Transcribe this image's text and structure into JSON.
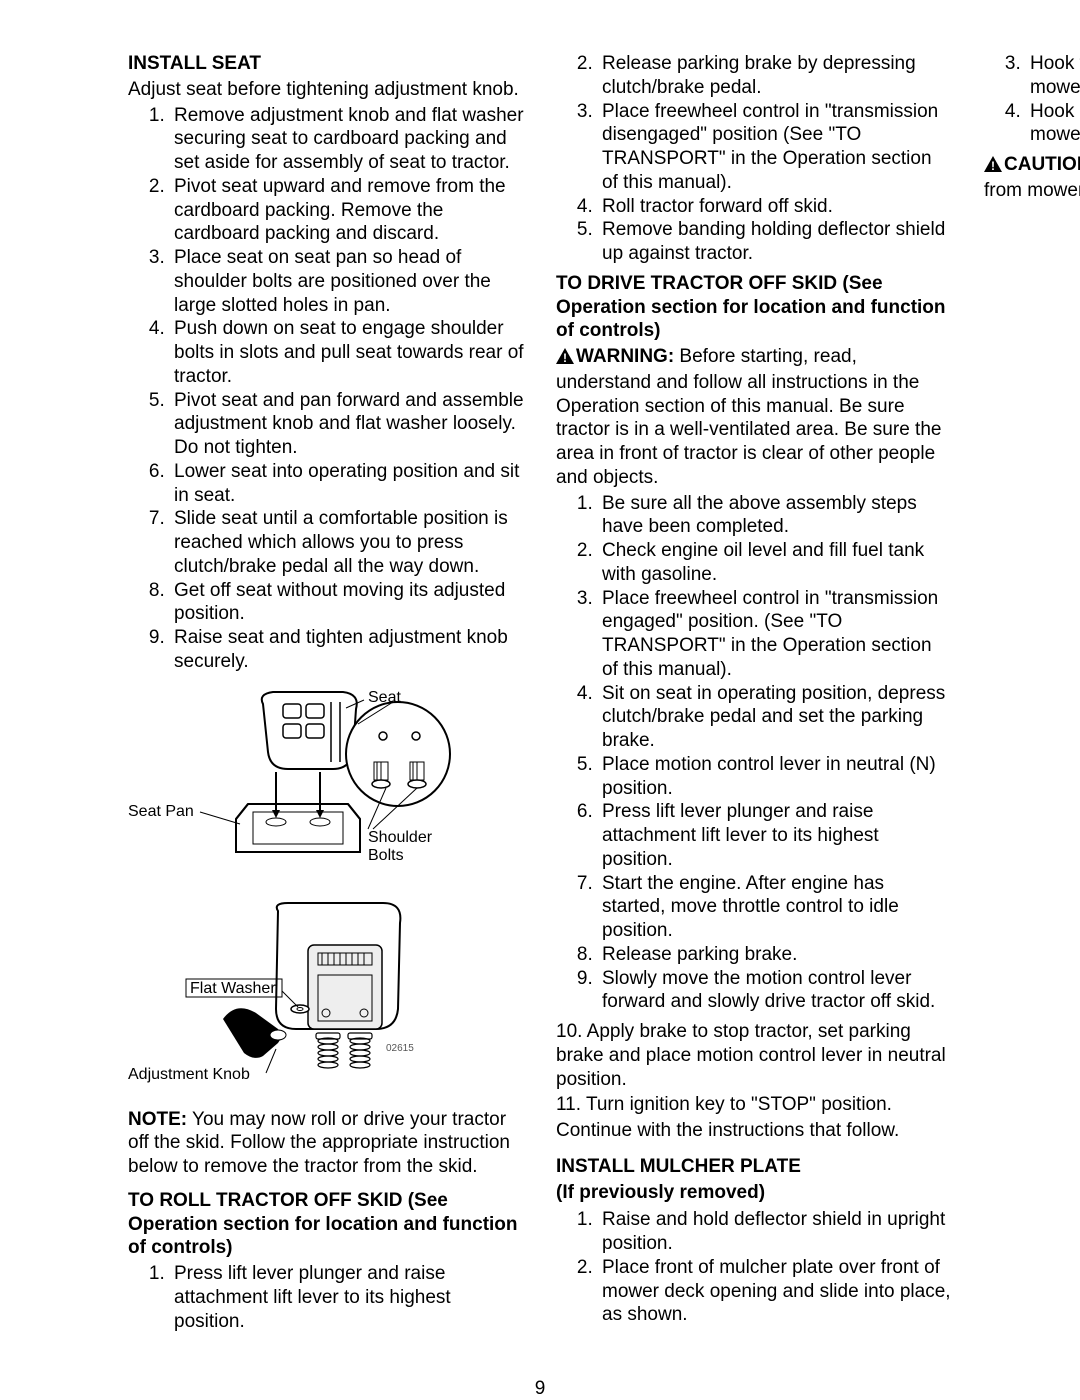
{
  "col1": {
    "install_seat_heading": "INSTALL SEAT",
    "install_seat_intro": "Adjust seat before tightening adjustment knob.",
    "install_seat_steps": [
      "Remove adjustment knob and flat washer securing seat to cardboard packing and set aside for assembly of seat to tractor.",
      "Pivot seat upward and remove from the cardboard packing. Remove the cardboard packing and discard.",
      "Place seat on seat pan so head of shoulder bolts are positioned over the large slotted holes in pan.",
      "Push down on seat to engage shoulder bolts in slots and pull seat towards rear of tractor.",
      "Pivot seat and pan forward and assemble adjustment knob and flat washer loosely. Do not tighten.",
      "Lower seat into operating position and sit in seat.",
      "Slide seat until a comfortable position is reached which allows you to press clutch/brake pedal all the way down.",
      "Get off seat without moving its adjusted position.",
      "Raise seat and tighten adjustment knob securely."
    ],
    "fig1_labels": {
      "seat": "Seat",
      "seat_pan": "Seat Pan",
      "shoulder_bolts": "Shoulder Bolts"
    },
    "fig2_labels": {
      "flat_washer": "Flat Washer",
      "adjustment_knob": "Adjustment Knob"
    },
    "note_prefix": "NOTE:",
    "note_text": " You may now roll or drive your tractor off the skid. Follow the appropriate instruction below to remove the tractor from the skid.",
    "roll_heading": "TO ROLL TRACTOR OFF SKID (See Operation section for location and function of controls)",
    "roll_steps_a": [
      "Press lift lever plunger and raise attachment lift lever to its highest position."
    ]
  },
  "col2": {
    "roll_steps_b": [
      "Release parking brake by depressing clutch/brake pedal.",
      "Place freewheel control in \"transmission disengaged\" position (See \"TO TRANSPORT\" in the Operation section of this manual).",
      "Roll tractor forward off skid.",
      "Remove banding holding deflector shield up against tractor."
    ],
    "drive_heading": "TO DRIVE TRACTOR OFF SKID (See Operation section for location and function of controls)",
    "warning_prefix": "WARNING:",
    "warning_text": " Before starting, read, understand and follow all instructions in the Operation section of this manual. Be sure tractor is in a well-ventilated area. Be sure the area in  front of tractor is clear of other people and objects.",
    "drive_steps": [
      "Be sure all the above assembly steps have been completed.",
      "Check engine oil level and fill fuel tank with gasoline.",
      "Place freewheel control in \"transmission engaged\" position. (See \"TO TRANSPORT\" in the Operation section of this manual).",
      "Sit on seat in operating position, depress clutch/brake pedal and set the parking brake.",
      "Place motion control lever in neutral (N) position.",
      "Press lift lever plunger and raise attachment lift lever to its highest position.",
      "Start the engine. After engine has started, move throttle control to idle position.",
      "Release parking brake.",
      "Slowly move the motion control lever forward and slowly drive tractor off skid."
    ],
    "drive_10": "10. Apply brake to stop tractor, set parking brake and place motion control lever in neutral position.",
    "drive_11": "11. Turn ignition key to \"STOP\" position.",
    "continue": "Continue with the instructions that follow.",
    "mulcher_heading": "INSTALL MULCHER PLATE",
    "mulcher_sub": "(If previously removed)",
    "mulcher_steps": [
      "Raise and hold deflector shield in upright position.",
      "Place front of mulcher plate over front of mower deck opening and slide into place, as shown.",
      "Hook front latch into hole on front of mower deck.",
      "Hook rear latch into hole on back of mower deck."
    ],
    "caution_prefix": "CAUTION",
    "caution_text": ":  Do not remove deflector shield from mower."
  },
  "page_number": "9",
  "style": {
    "font_size": 19,
    "heading_weight": "bold",
    "text_color": "#000000",
    "background": "#ffffff"
  }
}
